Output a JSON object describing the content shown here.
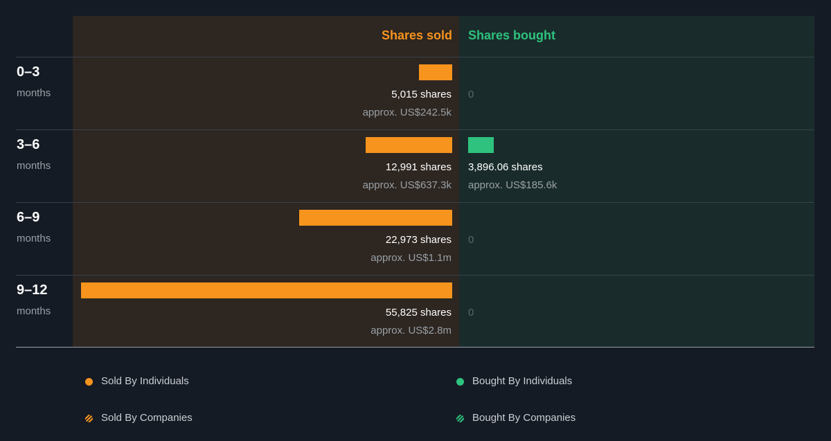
{
  "chart_data": {
    "type": "bar",
    "columns": {
      "sold": "Shares sold",
      "bought": "Shares bought"
    },
    "categories": [
      {
        "period": "0–3",
        "unit": "months"
      },
      {
        "period": "3–6",
        "unit": "months"
      },
      {
        "period": "6–9",
        "unit": "months"
      },
      {
        "period": "9–12",
        "unit": "months"
      }
    ],
    "series": [
      {
        "name": "Shares sold",
        "values": [
          5015,
          12991,
          22973,
          55825
        ],
        "labels": [
          "5,015 shares",
          "12,991 shares",
          "22,973 shares",
          "55,825 shares"
        ],
        "approx": [
          "approx. US$242.5k",
          "approx. US$637.3k",
          "approx. US$1.1m",
          "approx. US$2.8m"
        ]
      },
      {
        "name": "Shares bought",
        "values": [
          0,
          3896.06,
          0,
          0
        ],
        "labels": [
          "0",
          "3,896.06 shares",
          "0",
          "0"
        ],
        "approx": [
          "",
          "approx. US$185.6k",
          "",
          ""
        ]
      }
    ],
    "legend": [
      {
        "label": "Sold By Individuals",
        "color": "#f7941d",
        "style": "solid"
      },
      {
        "label": "Bought By Individuals",
        "color": "#2ec27e",
        "style": "solid"
      },
      {
        "label": "Sold By Companies",
        "color": "#f7941d",
        "style": "hatched"
      },
      {
        "label": "Bought By Companies",
        "color": "#2ec27e",
        "style": "hatched"
      }
    ],
    "colors": {
      "sold": "#f7941d",
      "bought": "#2ec27e"
    }
  }
}
